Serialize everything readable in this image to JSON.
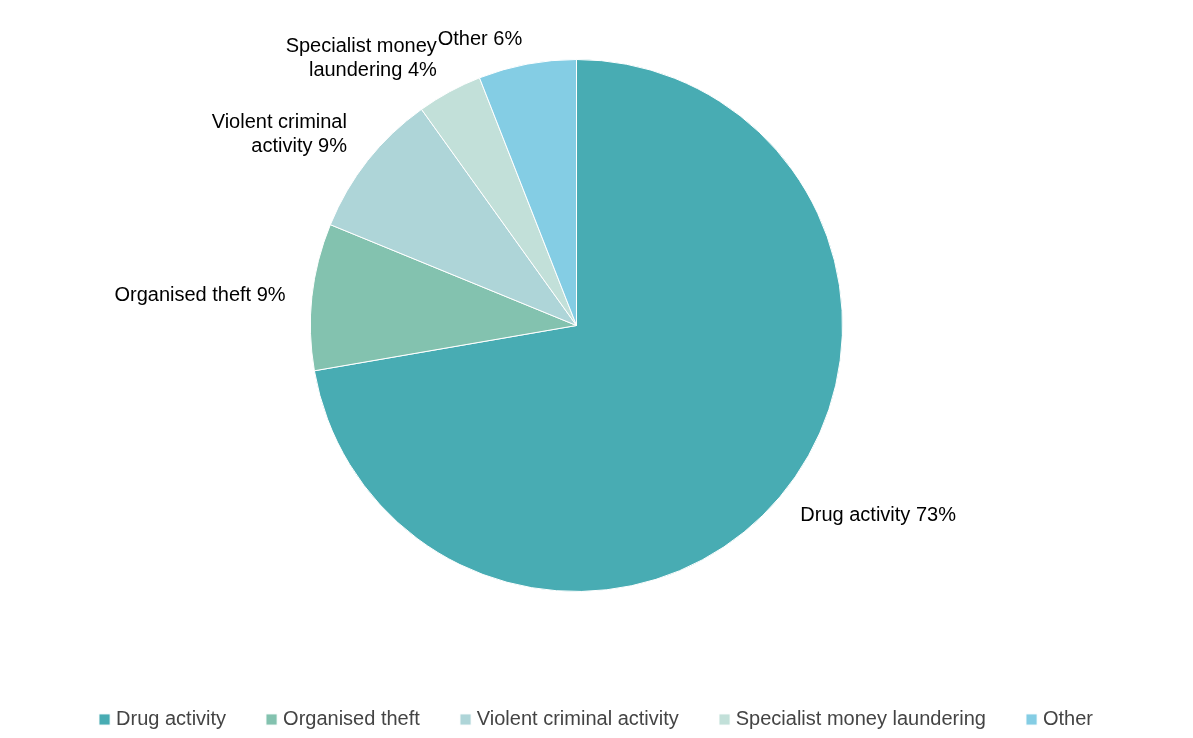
{
  "chart_data": {
    "type": "pie",
    "categories": [
      "Drug activity",
      "Organised theft",
      "Violent criminal activity",
      "Specialist money laundering",
      "Other"
    ],
    "values": [
      73,
      9,
      9,
      4,
      6
    ],
    "colors": [
      "#48acb3",
      "#83c2af",
      "#aed5d8",
      "#c2e0d9",
      "#84cde4"
    ],
    "value_labels": [
      "73%",
      "9%",
      "9%",
      "4%",
      "6%"
    ],
    "legend": "bottom"
  }
}
